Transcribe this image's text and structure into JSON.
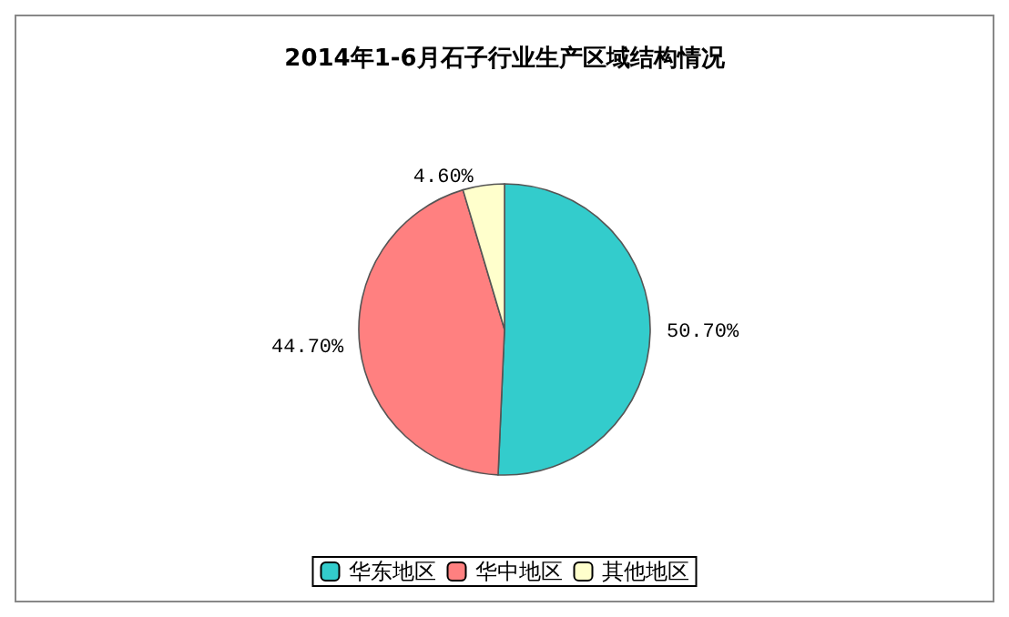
{
  "chart_data": {
    "type": "pie",
    "title": "2014年1-6月石子行业生产区域结构情况",
    "categories": [
      "华东地区",
      "华中地区",
      "其他地区"
    ],
    "values": [
      50.7,
      44.7,
      4.6
    ],
    "colors": [
      "#33cccc",
      "#ff8080",
      "#ffffcc"
    ],
    "value_labels": [
      "50.70%",
      "44.70%",
      "4.60%"
    ],
    "legend": "bottom"
  }
}
